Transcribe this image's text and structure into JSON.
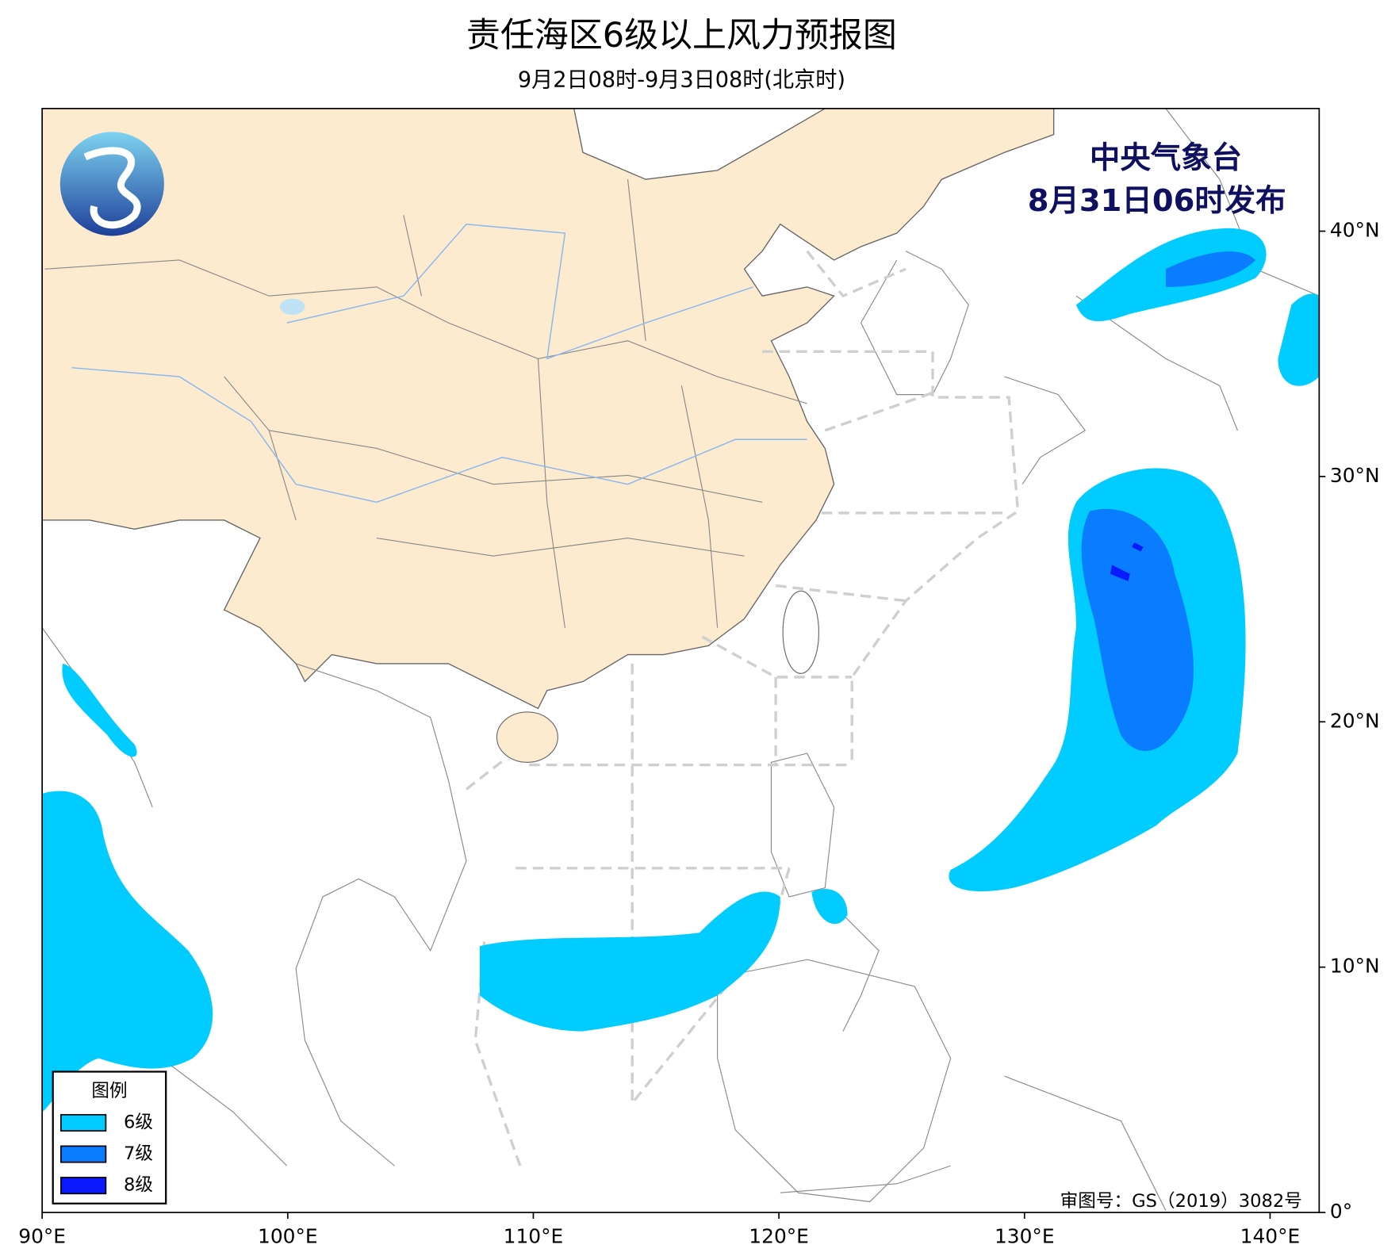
{
  "header": {
    "title": "责任海区6级以上风力预报图",
    "subtitle": "9月2日08时-9月3日08时(北京时)"
  },
  "issuer": {
    "name": "中央气象台",
    "time": "8月31日06时发布"
  },
  "map": {
    "xlim": [
      90,
      142
    ],
    "ylim": [
      0,
      45
    ],
    "xticks": [
      {
        "value": 90,
        "label": "90°E"
      },
      {
        "value": 100,
        "label": "100°E"
      },
      {
        "value": 110,
        "label": "110°E"
      },
      {
        "value": 120,
        "label": "120°E"
      },
      {
        "value": 130,
        "label": "130°E"
      },
      {
        "value": 140,
        "label": "140°E"
      }
    ],
    "yticks": [
      {
        "value": 0,
        "label": "0°"
      },
      {
        "value": 10,
        "label": "10°N"
      },
      {
        "value": 20,
        "label": "20°N"
      },
      {
        "value": 30,
        "label": "30°N"
      },
      {
        "value": 40,
        "label": "40°N"
      }
    ]
  },
  "legend": {
    "title": "图例",
    "items": [
      {
        "label": "6级",
        "color": "#00ccff"
      },
      {
        "label": "7级",
        "color": "#0a7cff"
      },
      {
        "label": "8级",
        "color": "#0a1aff"
      }
    ]
  },
  "note": "审图号：GS（2019）3082号"
}
